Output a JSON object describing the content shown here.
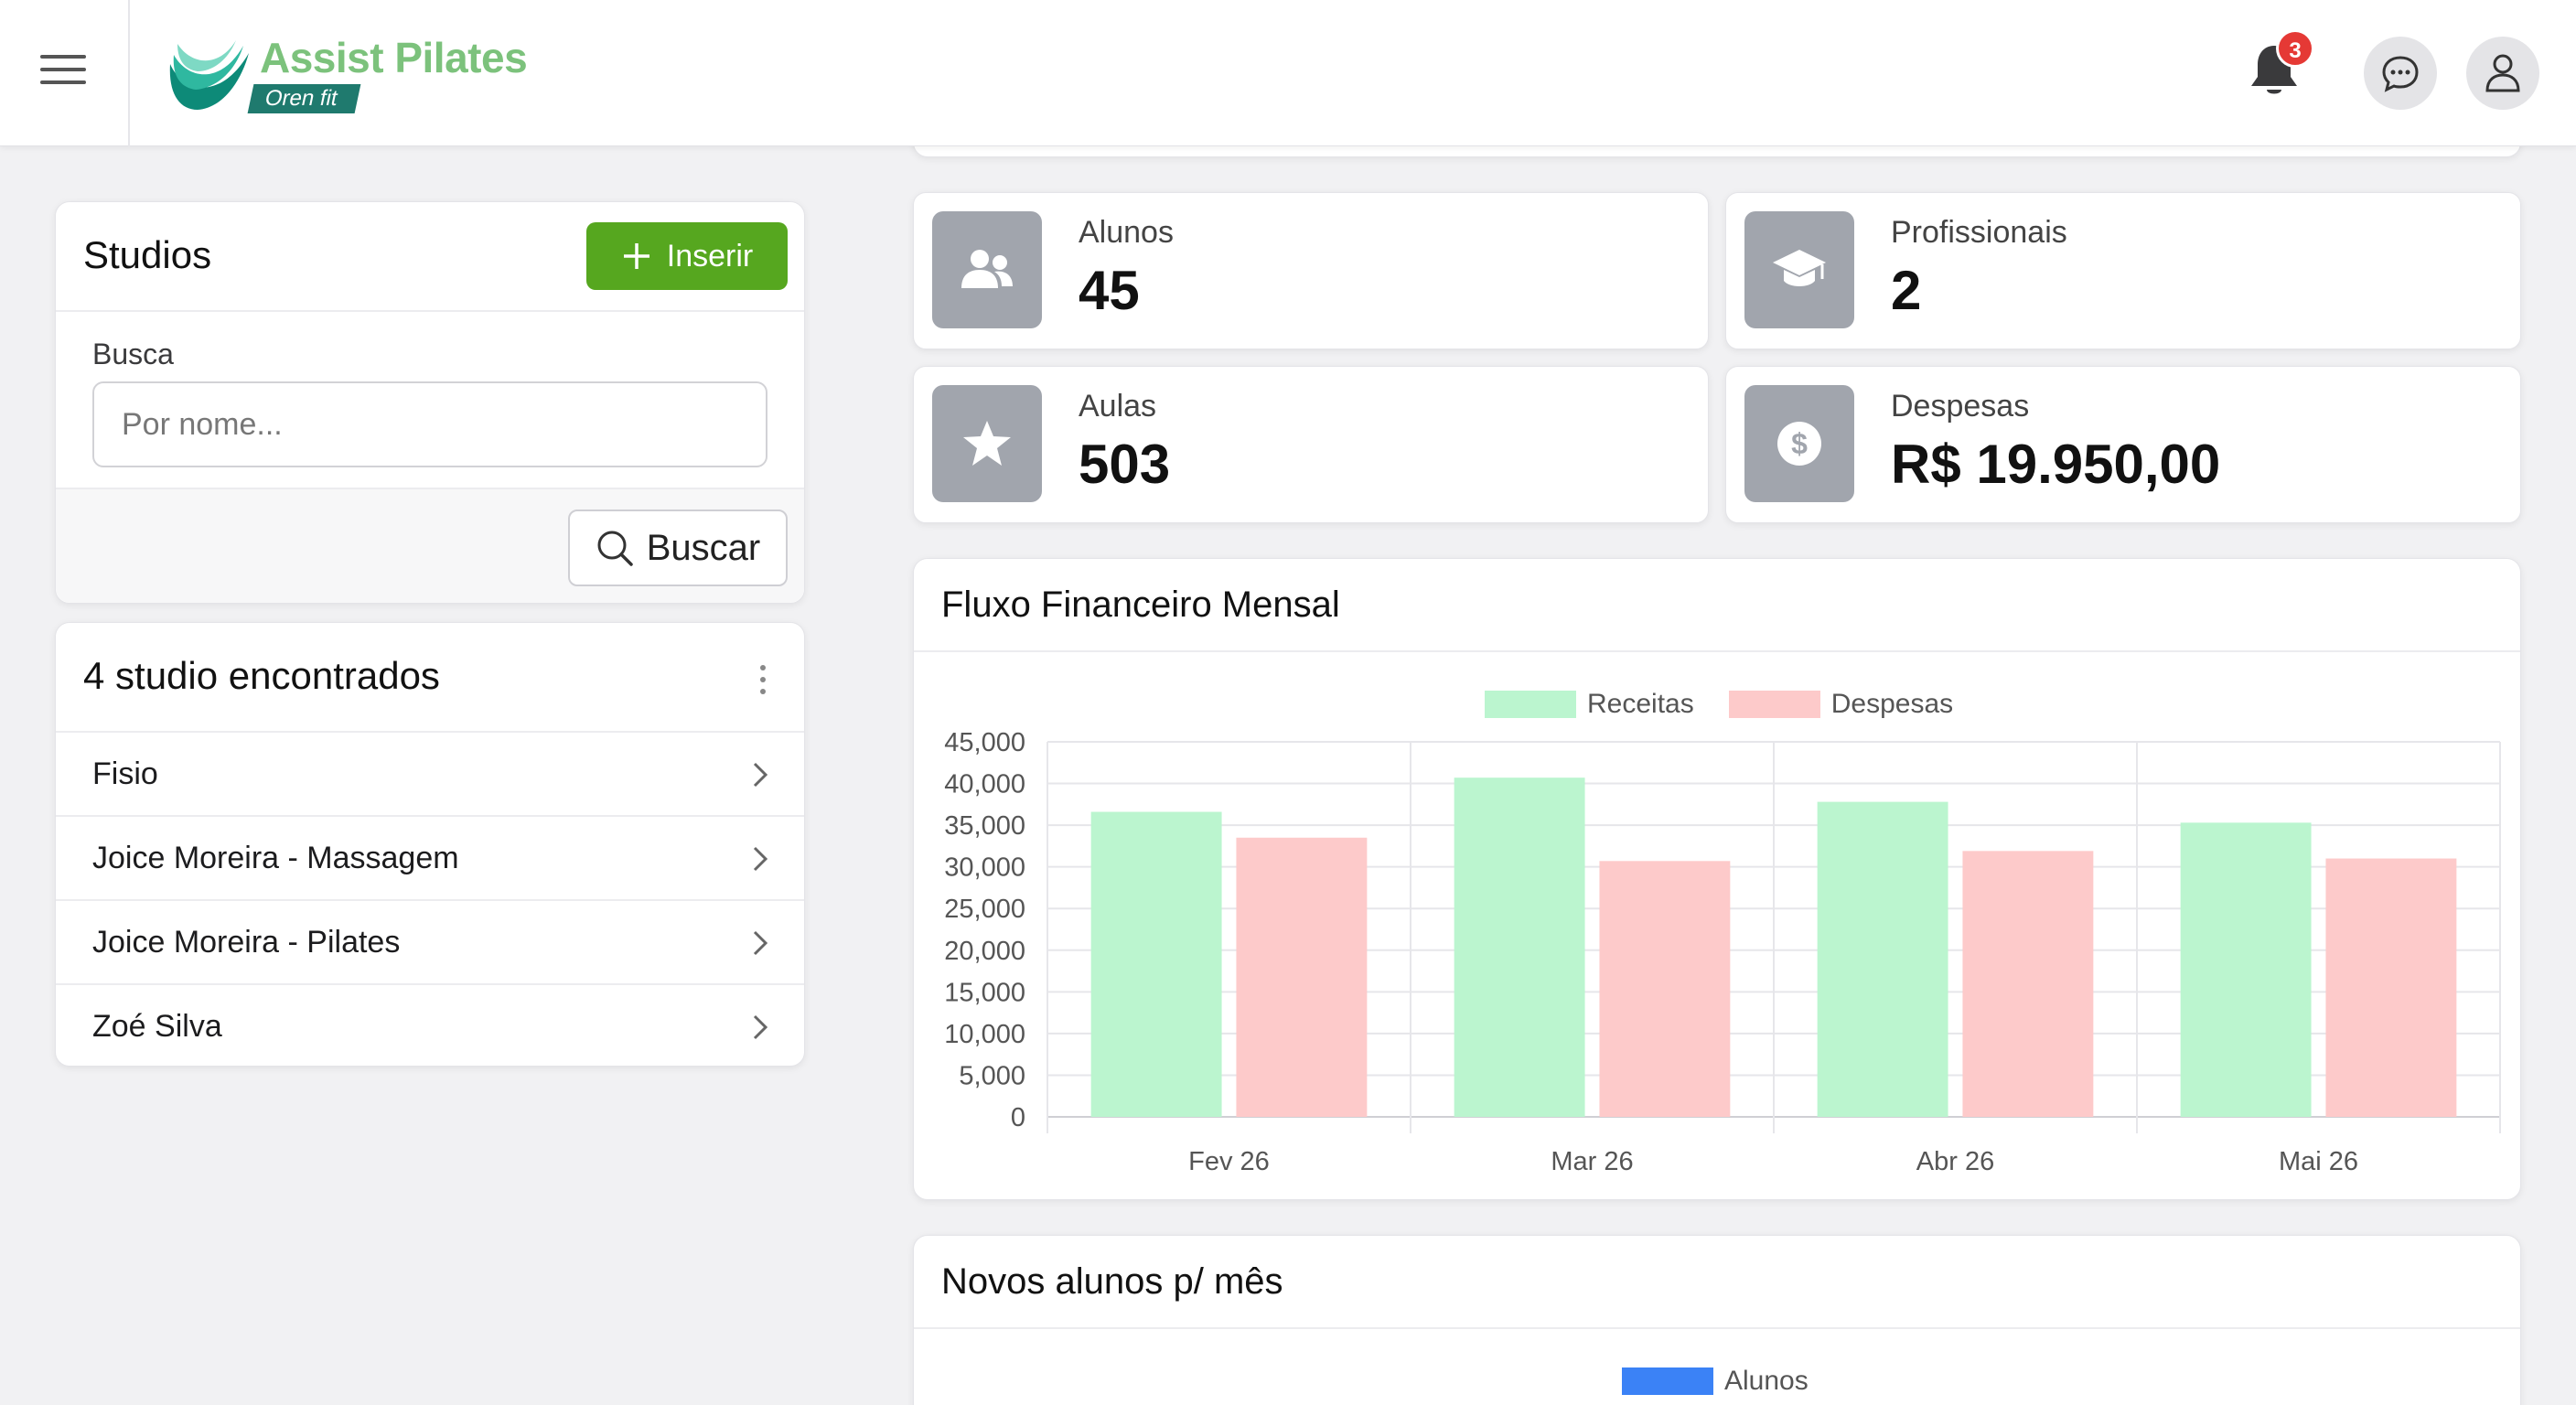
{
  "app": {
    "brand": "Assist Pilates",
    "brand_sub": "Oren fit",
    "notification_count": "3"
  },
  "studios_panel": {
    "title": "Studios",
    "insert_label": "Inserir",
    "search_label": "Busca",
    "search_placeholder": "Por nome...",
    "search_value": "",
    "search_button": "Buscar"
  },
  "results_panel": {
    "title": "4 studio encontrados",
    "items": [
      {
        "label": "Fisio"
      },
      {
        "label": "Joice Moreira - Massagem"
      },
      {
        "label": "Joice Moreira - Pilates"
      },
      {
        "label": "Zoé Silva"
      }
    ]
  },
  "stats": [
    {
      "label": "Alunos",
      "value": "45",
      "icon": "users-icon"
    },
    {
      "label": "Profissionais",
      "value": "2",
      "icon": "graduation-cap-icon"
    },
    {
      "label": "Aulas",
      "value": "503",
      "icon": "star-icon"
    },
    {
      "label": "Despesas",
      "value": "R$ 19.950,00",
      "icon": "dollar-icon"
    }
  ],
  "financial_chart": {
    "title": "Fluxo Financeiro Mensal"
  },
  "students_chart": {
    "title": "Novos alunos p/ mês",
    "legend_label": "Alunos"
  },
  "colors": {
    "primary_green": "#56a71f",
    "receitas": "#bbf5cf",
    "despesas": "#fdcaca",
    "alunos": "#3b82f6",
    "badge_red": "#e53935"
  },
  "chart_data": {
    "type": "bar",
    "title": "Fluxo Financeiro Mensal",
    "categories": [
      "Fev 26",
      "Mar 26",
      "Abr 26",
      "Mai 26"
    ],
    "series": [
      {
        "name": "Receitas",
        "values": [
          36600,
          40700,
          37800,
          35300
        ],
        "color": "#bbf5cf"
      },
      {
        "name": "Despesas",
        "values": [
          33500,
          30700,
          31900,
          31000
        ],
        "color": "#fdcaca"
      }
    ],
    "yticks": [
      "0",
      "5,000",
      "10,000",
      "15,000",
      "20,000",
      "25,000",
      "30,000",
      "35,000",
      "40,000",
      "45,000"
    ],
    "ylim": [
      0,
      45000
    ],
    "legend": "top-center",
    "grid": true
  }
}
